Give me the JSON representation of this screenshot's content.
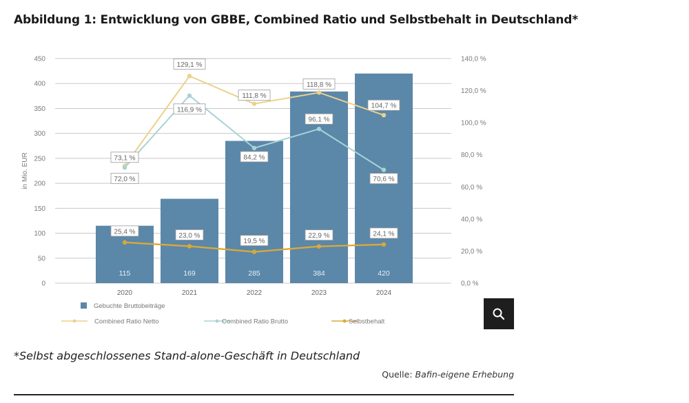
{
  "page": {
    "title": "Abbildung 1: Entwicklung von GBBE, Combined Ratio und Selbstbehalt in Deutschland*",
    "footnote": "*Selbst abgeschlossenes Stand-alone-Geschäft in Deutschland",
    "source_label": "Quelle: ",
    "source_value": "Bafin-eigene Erhebung",
    "search_icon": "search-icon"
  },
  "colors": {
    "bar": "#5b87a9",
    "netto": "#ecd18c",
    "brutto": "#a8d3d6",
    "selbstbehalt": "#d9a93a",
    "grid": "#c8c8c8",
    "axis_text": "#7a7a7a"
  },
  "chart_data": {
    "type": "bar",
    "title": "Abbildung 1: Entwicklung von GBBE, Combined Ratio und Selbstbehalt in Deutschland*",
    "categories": [
      "2020",
      "2021",
      "2022",
      "2023",
      "2024"
    ],
    "ylabel": "in Mio. EUR",
    "ylim": [
      0,
      450
    ],
    "yticks": [
      "0",
      "50",
      "100",
      "150",
      "200",
      "250",
      "300",
      "350",
      "400",
      "450"
    ],
    "y2lim": [
      0,
      140
    ],
    "y2ticks": [
      "0,0 %",
      "20,0 %",
      "40,0 %",
      "60,0 %",
      "80,0 %",
      "100,0 %",
      "120,0 %",
      "140,0 %"
    ],
    "grid": true,
    "legend_position": "bottom",
    "series": [
      {
        "name": "Gebuchte Bruttobeiträge",
        "type": "bar",
        "axis": "left",
        "values": [
          115,
          169,
          285,
          384,
          420
        ],
        "labels": [
          "115",
          "169",
          "285",
          "384",
          "420"
        ]
      },
      {
        "name": "Combined Ratio Netto",
        "type": "line",
        "axis": "right",
        "values": [
          73.1,
          129.1,
          111.8,
          118.8,
          104.7
        ],
        "labels": [
          "73,1 %",
          "129,1 %",
          "111,8 %",
          "118,8 %",
          "104,7 %"
        ]
      },
      {
        "name": "Combined Ratio Brutto",
        "type": "line",
        "axis": "right",
        "values": [
          72.0,
          116.9,
          84.2,
          96.1,
          70.6
        ],
        "labels": [
          "72,0 %",
          "116,9 %",
          "84,2 %",
          "96,1 %",
          "70,6 %"
        ]
      },
      {
        "name": "Selbstbehalt",
        "type": "line",
        "axis": "right",
        "values": [
          25.4,
          23.0,
          19.5,
          22.9,
          24.1
        ],
        "labels": [
          "25,4 %",
          "23,0 %",
          "19,5 %",
          "22,9 %",
          "24,1 %"
        ]
      }
    ]
  }
}
